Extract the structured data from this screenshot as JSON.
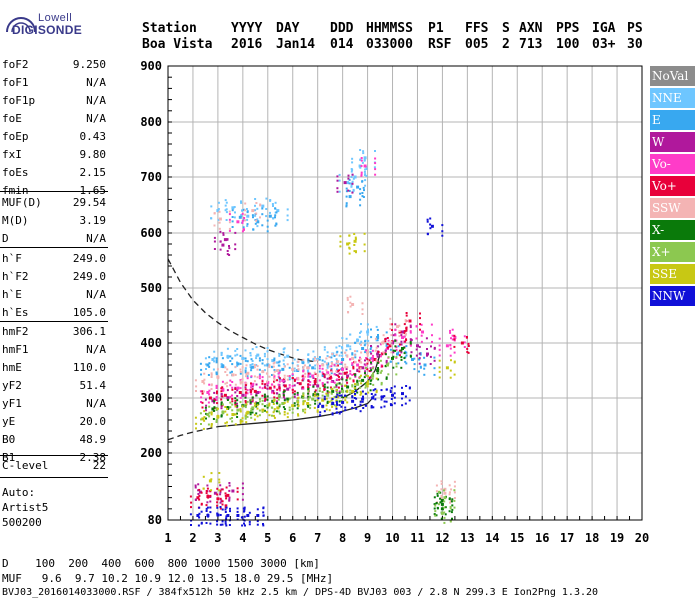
{
  "logo": {
    "top": "Lowell",
    "bottom": "DIGISONDE"
  },
  "header": {
    "row1": [
      "Station",
      "YYYY",
      "DAY",
      "DDD",
      "HHMMSS",
      "P1",
      "FFS",
      "S",
      "AXN",
      "PPS",
      "IGA",
      "PS"
    ],
    "row2": [
      "Boa Vista",
      "2016",
      "Jan14",
      "014",
      "033000",
      "RSF",
      "005",
      "2",
      "713",
      "100",
      "03+",
      "30"
    ]
  },
  "params_group1": [
    {
      "label": "foF2",
      "value": "9.250"
    },
    {
      "label": "foF1",
      "value": "N/A"
    },
    {
      "label": "foF1p",
      "value": "N/A"
    },
    {
      "label": "foE",
      "value": "N/A"
    },
    {
      "label": "foEp",
      "value": "0.43"
    },
    {
      "label": "fxI",
      "value": "9.80"
    },
    {
      "label": "foEs",
      "value": "2.15"
    },
    {
      "label": "fmin",
      "value": "1.65"
    }
  ],
  "params_group2": [
    {
      "label": "MUF(D)",
      "value": "29.54"
    },
    {
      "label": "M(D)",
      "value": "3.19"
    },
    {
      "label": "D",
      "value": "N/A"
    }
  ],
  "params_group3": [
    {
      "label": "h`F",
      "value": "249.0"
    },
    {
      "label": "h`F2",
      "value": "249.0"
    },
    {
      "label": "h`E",
      "value": "N/A"
    },
    {
      "label": "h`Es",
      "value": "105.0"
    }
  ],
  "params_group4": [
    {
      "label": "hmF2",
      "value": "306.1"
    },
    {
      "label": "hmF1",
      "value": "N/A"
    },
    {
      "label": "hmE",
      "value": "110.0"
    },
    {
      "label": "yF2",
      "value": "51.4"
    },
    {
      "label": "yF1",
      "value": "N/A"
    },
    {
      "label": "yE",
      "value": "20.0"
    },
    {
      "label": "B0",
      "value": "48.9"
    },
    {
      "label": "B1",
      "value": "2.38"
    }
  ],
  "params_group5": [
    {
      "label": "C-level",
      "value": "22"
    }
  ],
  "autoscale": {
    "line1": "Auto:",
    "line2": "Artist5",
    "line3": "500200"
  },
  "legend": [
    {
      "label": "NoVal",
      "color": "#8c8c8c"
    },
    {
      "label": "NNE",
      "color": "#6ec6ff"
    },
    {
      "label": "E",
      "color": "#38a8f0"
    },
    {
      "label": "W",
      "color": "#b0189c"
    },
    {
      "label": "Vo-",
      "color": "#ff3cc8"
    },
    {
      "label": "Vo+",
      "color": "#e8003a"
    },
    {
      "label": "SSW",
      "color": "#f4b4b4"
    },
    {
      "label": "X-",
      "color": "#0a7a0a"
    },
    {
      "label": "X+",
      "color": "#8cc850"
    },
    {
      "label": "SSE",
      "color": "#c8c814"
    },
    {
      "label": "NNW",
      "color": "#1010d8"
    }
  ],
  "footer": {
    "d_line": "D    100  200  400  600  800 1000 1500 3000 [km]",
    "muf_line": "MUF   9.6  9.7 10.2 10.9 12.0 13.5 18.0 29.5 [MHz]",
    "info_line": "BVJ03_2016014033000.RSF / 384fx512h 50 kHz 2.5 km / DPS-4D BVJ03 003 / 2.8 N 299.3 E Ion2Png 1.3.20"
  },
  "chart_data": {
    "type": "scatter",
    "title": "",
    "xlabel": "",
    "ylabel": "",
    "xlim": [
      1,
      20
    ],
    "ylim": [
      80,
      900
    ],
    "x_ticks": [
      1,
      2,
      3,
      4,
      5,
      6,
      7,
      8,
      9,
      10,
      11,
      12,
      13,
      14,
      15,
      16,
      17,
      18,
      19,
      20
    ],
    "y_ticks": [
      80,
      200,
      300,
      400,
      500,
      600,
      700,
      800,
      900
    ],
    "grid": true,
    "legend_position": "right",
    "series": [
      {
        "name": "NNE",
        "color": "#6ec6ff",
        "points": [
          [
            2.8,
            370
          ],
          [
            3.4,
            375
          ],
          [
            4.0,
            372
          ],
          [
            4.6,
            378
          ],
          [
            5.2,
            368
          ],
          [
            5.8,
            376
          ],
          [
            6.4,
            365
          ],
          [
            7.0,
            370
          ],
          [
            7.6,
            380
          ],
          [
            8.2,
            395
          ],
          [
            8.6,
            405
          ],
          [
            9.0,
            420
          ],
          [
            3.0,
            640
          ],
          [
            3.6,
            645
          ],
          [
            4.2,
            630
          ],
          [
            4.8,
            648
          ],
          [
            5.4,
            640
          ],
          [
            8.2,
            690
          ],
          [
            8.5,
            700
          ],
          [
            8.7,
            720
          ],
          [
            8.9,
            735
          ]
        ]
      },
      {
        "name": "E",
        "color": "#38a8f0",
        "points": [
          [
            2.6,
            360
          ],
          [
            3.2,
            358
          ],
          [
            3.8,
            362
          ],
          [
            4.4,
            356
          ],
          [
            5.0,
            360
          ],
          [
            5.6,
            352
          ],
          [
            6.2,
            350
          ],
          [
            6.8,
            355
          ],
          [
            7.4,
            362
          ],
          [
            8.0,
            370
          ],
          [
            8.8,
            390
          ],
          [
            9.4,
            410
          ],
          [
            10.2,
            380
          ],
          [
            10.8,
            370
          ],
          [
            11.3,
            360
          ],
          [
            3.9,
            628
          ],
          [
            4.6,
            620
          ],
          [
            5.1,
            630
          ],
          [
            8.3,
            665
          ],
          [
            8.6,
            682
          ]
        ]
      },
      {
        "name": "W",
        "color": "#b0189c",
        "points": [
          [
            2.8,
            295
          ],
          [
            3.4,
            300
          ],
          [
            4.0,
            305
          ],
          [
            4.6,
            310
          ],
          [
            5.2,
            312
          ],
          [
            5.8,
            316
          ],
          [
            6.4,
            318
          ],
          [
            7.0,
            322
          ],
          [
            7.6,
            330
          ],
          [
            8.2,
            340
          ],
          [
            8.8,
            355
          ],
          [
            9.4,
            380
          ],
          [
            10.0,
            400
          ],
          [
            10.4,
            420
          ],
          [
            11.0,
            395
          ],
          [
            11.4,
            380
          ],
          [
            2.3,
            130
          ],
          [
            2.9,
            128
          ],
          [
            3.6,
            132
          ],
          [
            3.2,
            578
          ],
          [
            3.3,
            588
          ],
          [
            8.1,
            690
          ]
        ]
      },
      {
        "name": "Vo-",
        "color": "#ff3cc8",
        "points": [
          [
            2.6,
            310
          ],
          [
            3.2,
            315
          ],
          [
            3.8,
            318
          ],
          [
            4.4,
            325
          ],
          [
            5.0,
            328
          ],
          [
            5.6,
            332
          ],
          [
            6.2,
            335
          ],
          [
            6.8,
            340
          ],
          [
            7.4,
            346
          ],
          [
            8.0,
            352
          ],
          [
            8.6,
            360
          ],
          [
            9.2,
            372
          ],
          [
            9.8,
            390
          ],
          [
            10.4,
            410
          ],
          [
            11.2,
            420
          ],
          [
            12.2,
            395
          ],
          [
            12.5,
            410
          ],
          [
            3.8,
            620
          ],
          [
            8.9,
            720
          ]
        ]
      },
      {
        "name": "Vo+",
        "color": "#e8003a",
        "points": [
          [
            2.2,
            120
          ],
          [
            2.6,
            122
          ],
          [
            3.0,
            118
          ],
          [
            3.4,
            124
          ],
          [
            2.7,
            300
          ],
          [
            3.3,
            305
          ],
          [
            3.9,
            310
          ],
          [
            4.5,
            312
          ],
          [
            5.1,
            318
          ],
          [
            5.7,
            322
          ],
          [
            6.3,
            326
          ],
          [
            6.9,
            330
          ],
          [
            7.5,
            336
          ],
          [
            8.1,
            345
          ],
          [
            8.7,
            355
          ],
          [
            9.3,
            370
          ],
          [
            9.9,
            395
          ],
          [
            10.3,
            420
          ],
          [
            10.7,
            440
          ],
          [
            12.8,
            400
          ]
        ]
      },
      {
        "name": "SSW",
        "color": "#f4b4b4",
        "points": [
          [
            2.4,
            330
          ],
          [
            3.0,
            338
          ],
          [
            3.6,
            342
          ],
          [
            4.2,
            345
          ],
          [
            4.8,
            348
          ],
          [
            5.4,
            350
          ],
          [
            6.0,
            352
          ],
          [
            6.6,
            355
          ],
          [
            7.2,
            360
          ],
          [
            7.8,
            366
          ],
          [
            8.4,
            372
          ],
          [
            9.0,
            382
          ],
          [
            9.6,
            400
          ],
          [
            10.2,
            430
          ],
          [
            3.1,
            625
          ],
          [
            4.4,
            640
          ],
          [
            8.4,
            470
          ],
          [
            12.1,
            128
          ],
          [
            12.1,
            135
          ]
        ]
      },
      {
        "name": "X-",
        "color": "#0a7a0a",
        "points": [
          [
            2.8,
            280
          ],
          [
            3.4,
            282
          ],
          [
            4.0,
            286
          ],
          [
            4.6,
            290
          ],
          [
            5.2,
            294
          ],
          [
            5.8,
            298
          ],
          [
            6.4,
            302
          ],
          [
            7.0,
            306
          ],
          [
            7.6,
            312
          ],
          [
            8.2,
            320
          ],
          [
            8.8,
            332
          ],
          [
            9.4,
            350
          ],
          [
            10.0,
            372
          ],
          [
            10.4,
            390
          ],
          [
            12.0,
            100
          ],
          [
            12.0,
            108
          ],
          [
            12.0,
            115
          ]
        ]
      },
      {
        "name": "X+",
        "color": "#8cc850",
        "points": [
          [
            2.6,
            270
          ],
          [
            3.2,
            274
          ],
          [
            3.8,
            278
          ],
          [
            4.4,
            282
          ],
          [
            5.0,
            286
          ],
          [
            5.6,
            290
          ],
          [
            6.2,
            294
          ],
          [
            6.8,
            298
          ],
          [
            7.4,
            305
          ],
          [
            8.0,
            312
          ],
          [
            8.6,
            325
          ],
          [
            9.2,
            340
          ],
          [
            9.8,
            360
          ],
          [
            12.0,
            92
          ],
          [
            12.1,
            120
          ]
        ]
      },
      {
        "name": "SSE",
        "color": "#c8c814",
        "points": [
          [
            2.4,
            262
          ],
          [
            3.0,
            266
          ],
          [
            3.6,
            270
          ],
          [
            4.2,
            274
          ],
          [
            4.8,
            278
          ],
          [
            5.4,
            282
          ],
          [
            6.0,
            286
          ],
          [
            6.6,
            290
          ],
          [
            7.2,
            296
          ],
          [
            7.8,
            302
          ],
          [
            8.4,
            312
          ],
          [
            9.0,
            326
          ],
          [
            2.7,
            150
          ],
          [
            8.2,
            580
          ],
          [
            8.5,
            585
          ],
          [
            12.2,
            355
          ]
        ]
      },
      {
        "name": "NNW",
        "color": "#1010d8",
        "points": [
          [
            2.2,
            88
          ],
          [
            2.6,
            88
          ],
          [
            3.0,
            89
          ],
          [
            3.4,
            88
          ],
          [
            3.8,
            88
          ],
          [
            4.2,
            88
          ],
          [
            4.6,
            88
          ],
          [
            7.2,
            285
          ],
          [
            7.6,
            290
          ],
          [
            8.0,
            292
          ],
          [
            8.4,
            294
          ],
          [
            8.8,
            298
          ],
          [
            9.2,
            300
          ],
          [
            9.6,
            302
          ],
          [
            10.0,
            305
          ],
          [
            10.4,
            308
          ],
          [
            11.6,
            612
          ]
        ]
      }
    ],
    "lines": [
      {
        "name": "dashed",
        "style": "dashed",
        "points": [
          [
            1.0,
            553
          ],
          [
            1.5,
            510
          ],
          [
            2.0,
            478
          ],
          [
            2.5,
            455
          ],
          [
            3.0,
            437
          ],
          [
            3.5,
            422
          ],
          [
            4.0,
            410
          ],
          [
            4.5,
            398
          ],
          [
            5.0,
            388
          ],
          [
            5.5,
            380
          ],
          [
            6.0,
            373
          ],
          [
            6.5,
            368
          ],
          [
            7.0,
            366
          ]
        ]
      },
      {
        "name": "dashed-bottom",
        "style": "dashed",
        "points": [
          [
            1.0,
            224
          ],
          [
            1.5,
            232
          ],
          [
            2.0,
            238
          ],
          [
            2.5,
            243
          ],
          [
            3.0,
            248
          ]
        ]
      },
      {
        "name": "profile",
        "style": "solid",
        "points": [
          [
            3.0,
            248
          ],
          [
            3.5,
            250
          ],
          [
            4.0,
            252
          ],
          [
            5.0,
            256
          ],
          [
            6.0,
            260
          ],
          [
            7.0,
            266
          ],
          [
            7.5,
            270
          ],
          [
            8.0,
            276
          ],
          [
            8.5,
            282
          ],
          [
            9.0,
            290
          ],
          [
            9.2,
            300
          ]
        ]
      },
      {
        "name": "profile-upper",
        "style": "solid",
        "points": [
          [
            8.0,
            300
          ],
          [
            8.5,
            312
          ],
          [
            9.0,
            330
          ],
          [
            9.3,
            350
          ],
          [
            9.5,
            380
          ]
        ]
      }
    ]
  }
}
